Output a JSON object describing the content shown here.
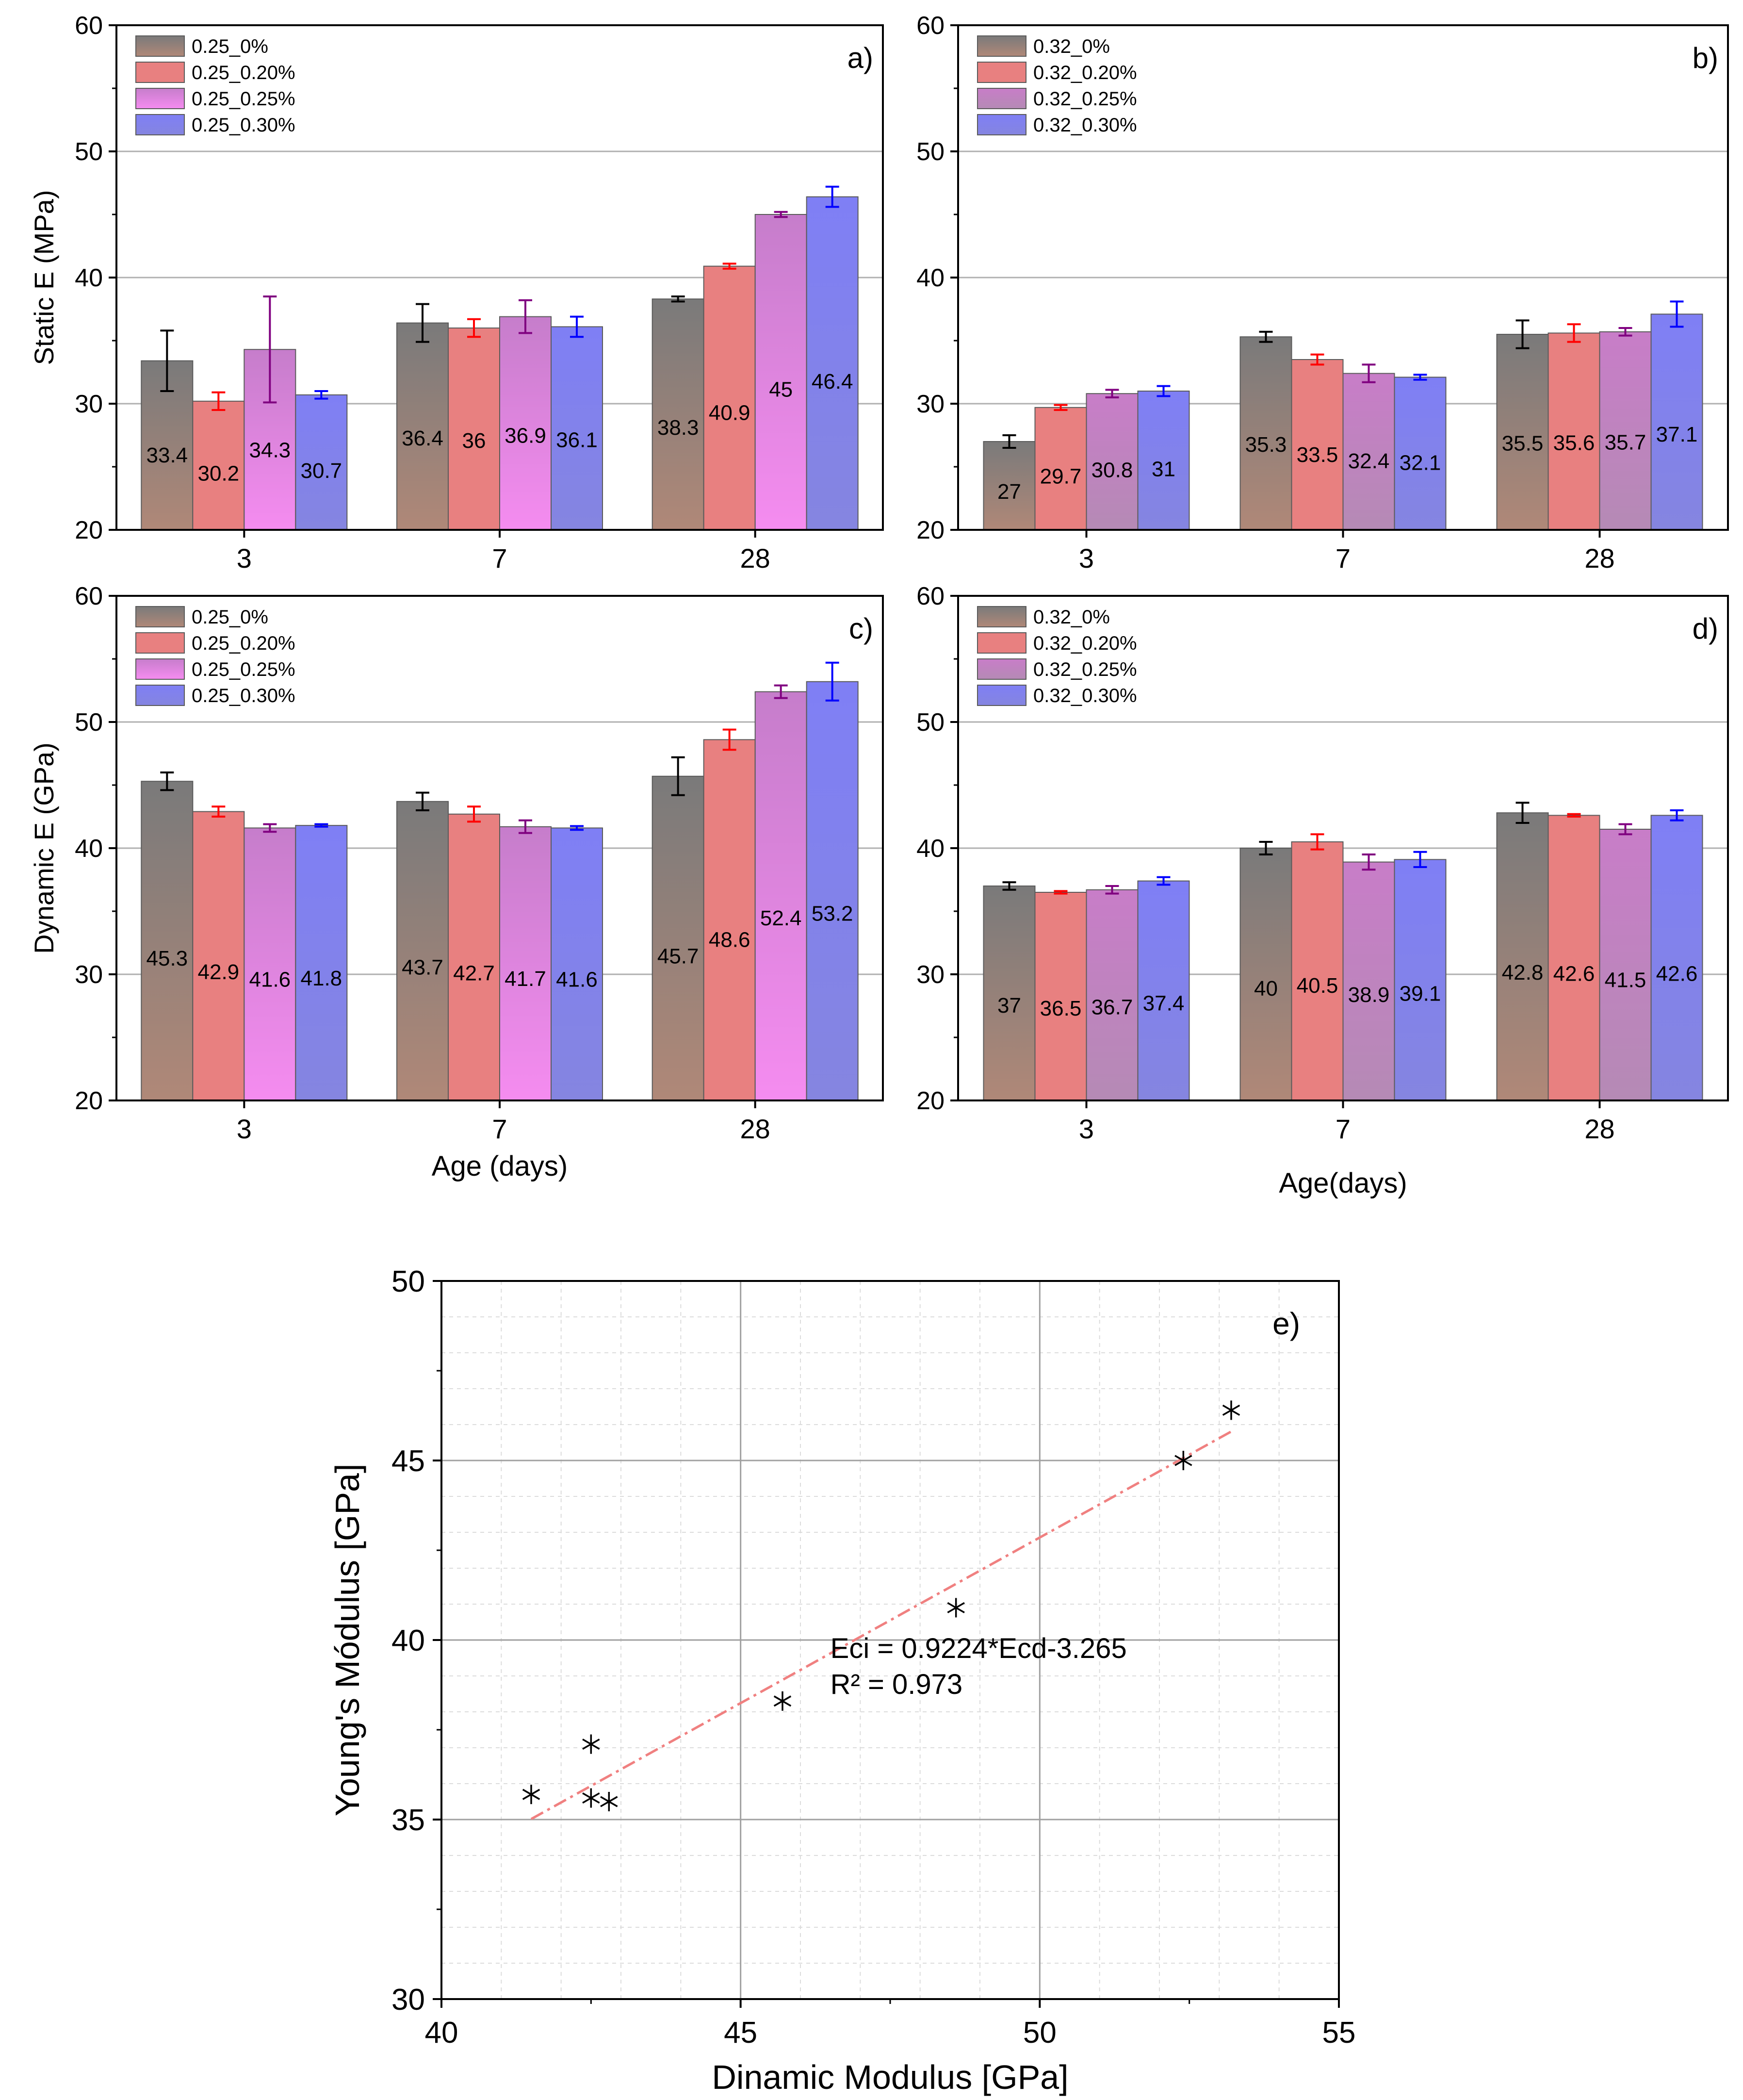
{
  "colors": {
    "gray": "#7a7a7a",
    "red": "#e88080",
    "pink": "#f58cf0",
    "purple": "#c87dc8",
    "blue": "#7f7ff5",
    "err_gray": "#000000",
    "err_red": "#ff0000",
    "err_purple": "#800080",
    "err_blue": "#0000ff",
    "fit_line": "#f08080"
  },
  "chart_data": [
    {
      "id": "a",
      "type": "bar",
      "panel_label": "a)",
      "ylabel": "Static E (MPa)",
      "xlabel": "",
      "ylim": [
        20,
        60
      ],
      "yticks": [
        "20",
        "30",
        "40",
        "50",
        "60"
      ],
      "categories": [
        "3",
        "7",
        "28"
      ],
      "series": [
        {
          "name": "0.25_0%",
          "values": [
            33.4,
            36.4,
            38.3
          ],
          "labels": [
            "33.4",
            "36.4",
            "38.3"
          ],
          "err": [
            2.4,
            1.5,
            0.2
          ],
          "color": "gray",
          "err_color": "err_gray"
        },
        {
          "name": "0.25_0.20%",
          "values": [
            30.2,
            36.0,
            40.9
          ],
          "labels": [
            "30.2",
            "36",
            "40.9"
          ],
          "err": [
            0.7,
            0.7,
            0.2
          ],
          "color": "red",
          "err_color": "err_red"
        },
        {
          "name": "0.25_0.25%",
          "values": [
            34.3,
            36.9,
            45.0
          ],
          "labels": [
            "34.3",
            "36.9",
            "45"
          ],
          "err": [
            4.2,
            1.3,
            0.2
          ],
          "color": "pink",
          "err_color": "err_purple"
        },
        {
          "name": "0.25_0.30%",
          "values": [
            30.7,
            36.1,
            46.4
          ],
          "labels": [
            "30.7",
            "36.1",
            "46.4"
          ],
          "err": [
            0.3,
            0.8,
            0.8
          ],
          "color": "blue",
          "err_color": "err_blue"
        }
      ]
    },
    {
      "id": "b",
      "type": "bar",
      "panel_label": "b)",
      "ylabel": "",
      "xlabel": "",
      "ylim": [
        20,
        60
      ],
      "yticks": [
        "20",
        "30",
        "40",
        "50",
        "60"
      ],
      "categories": [
        "3",
        "7",
        "28"
      ],
      "series": [
        {
          "name": "0.32_0%",
          "values": [
            27.0,
            35.3,
            35.5
          ],
          "labels": [
            "27",
            "35.3",
            "35.5"
          ],
          "err": [
            0.5,
            0.4,
            1.1
          ],
          "color": "gray",
          "err_color": "err_gray"
        },
        {
          "name": "0.32_0.20%",
          "values": [
            29.7,
            33.5,
            35.6
          ],
          "labels": [
            "29.7",
            "33.5",
            "35.6"
          ],
          "err": [
            0.2,
            0.4,
            0.7
          ],
          "color": "red",
          "err_color": "err_red"
        },
        {
          "name": "0.32_0.25%",
          "values": [
            30.8,
            32.4,
            35.7
          ],
          "labels": [
            "30.8",
            "32.4",
            "35.7"
          ],
          "err": [
            0.3,
            0.7,
            0.3
          ],
          "color": "purple",
          "err_color": "err_purple"
        },
        {
          "name": "0.32_0.30%",
          "values": [
            31.0,
            32.1,
            37.1
          ],
          "labels": [
            "31",
            "32.1",
            "37.1"
          ],
          "err": [
            0.4,
            0.2,
            1.0
          ],
          "color": "blue",
          "err_color": "err_blue"
        }
      ]
    },
    {
      "id": "c",
      "type": "bar",
      "panel_label": "c)",
      "ylabel": "Dynamic E (GPa)",
      "xlabel": "Age (days)",
      "ylim": [
        20,
        60
      ],
      "yticks": [
        "20",
        "30",
        "40",
        "50",
        "60"
      ],
      "categories": [
        "3",
        "7",
        "28"
      ],
      "series": [
        {
          "name": "0.25_0%",
          "values": [
            45.3,
            43.7,
            45.7
          ],
          "labels": [
            "45.3",
            "43.7",
            "45.7"
          ],
          "err": [
            0.7,
            0.7,
            1.5
          ],
          "color": "gray",
          "err_color": "err_gray"
        },
        {
          "name": "0.25_0.20%",
          "values": [
            42.9,
            42.7,
            48.6
          ],
          "labels": [
            "42.9",
            "42.7",
            "48.6"
          ],
          "err": [
            0.4,
            0.6,
            0.8
          ],
          "color": "red",
          "err_color": "err_red"
        },
        {
          "name": "0.25_0.25%",
          "values": [
            41.6,
            41.7,
            52.4
          ],
          "labels": [
            "41.6",
            "41.7",
            "52.4"
          ],
          "err": [
            0.3,
            0.5,
            0.5
          ],
          "color": "pink",
          "err_color": "err_purple"
        },
        {
          "name": "0.25_0.30%",
          "values": [
            41.8,
            41.6,
            53.2
          ],
          "labels": [
            "41.8",
            "41.6",
            "53.2"
          ],
          "err": [
            0.1,
            0.15,
            1.5
          ],
          "color": "blue",
          "err_color": "err_blue"
        }
      ]
    },
    {
      "id": "d",
      "type": "bar",
      "panel_label": "d)",
      "ylabel": "",
      "xlabel": "Age(days)",
      "ylim": [
        20,
        60
      ],
      "yticks": [
        "20",
        "30",
        "40",
        "50",
        "60"
      ],
      "categories": [
        "3",
        "7",
        "28"
      ],
      "series": [
        {
          "name": "0.32_0%",
          "values": [
            37.0,
            40.0,
            42.8
          ],
          "labels": [
            "37",
            "40",
            "42.8"
          ],
          "err": [
            0.3,
            0.5,
            0.8
          ],
          "color": "gray",
          "err_color": "err_gray"
        },
        {
          "name": "0.32_0.20%",
          "values": [
            36.5,
            40.5,
            42.6
          ],
          "labels": [
            "36.5",
            "40.5",
            "42.6"
          ],
          "err": [
            0.1,
            0.6,
            0.1
          ],
          "color": "red",
          "err_color": "err_red"
        },
        {
          "name": "0.32_0.25%",
          "values": [
            36.7,
            38.9,
            41.5
          ],
          "labels": [
            "36.7",
            "38.9",
            "41.5"
          ],
          "err": [
            0.3,
            0.6,
            0.4
          ],
          "color": "purple",
          "err_color": "err_purple"
        },
        {
          "name": "0.32_0.30%",
          "values": [
            37.4,
            39.1,
            42.6
          ],
          "labels": [
            "37.4",
            "39.1",
            "42.6"
          ],
          "err": [
            0.3,
            0.6,
            0.4
          ],
          "color": "blue",
          "err_color": "err_blue"
        }
      ]
    },
    {
      "id": "e",
      "type": "scatter",
      "panel_label": "e)",
      "xlabel": "Dinamic Modulus [GPa]",
      "ylabel": "Young's Módulus [GPa]",
      "xlim": [
        40,
        55
      ],
      "ylim": [
        30,
        50
      ],
      "xticks": [
        "40",
        "45",
        "50",
        "55"
      ],
      "yticks": [
        "30",
        "35",
        "40",
        "45",
        "50"
      ],
      "points": [
        {
          "x": 41.5,
          "y": 35.7
        },
        {
          "x": 42.5,
          "y": 37.1
        },
        {
          "x": 42.5,
          "y": 35.6
        },
        {
          "x": 42.8,
          "y": 35.5
        },
        {
          "x": 45.7,
          "y": 38.3
        },
        {
          "x": 48.6,
          "y": 40.9
        },
        {
          "x": 52.4,
          "y": 45.0
        },
        {
          "x": 53.2,
          "y": 46.4
        }
      ],
      "fit": {
        "slope": 0.9224,
        "intercept": -3.265,
        "x_range": [
          41.5,
          53.2
        ]
      },
      "equation_text": "Eci = 0.9224*Ecd-3.265",
      "r2_text": "R² = 0.973"
    }
  ]
}
